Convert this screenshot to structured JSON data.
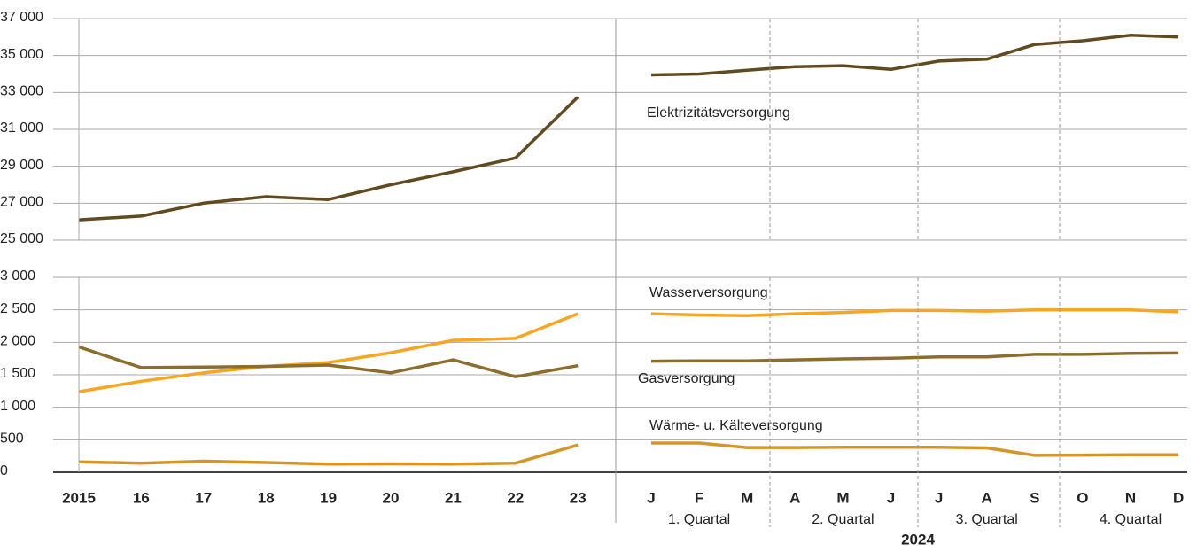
{
  "chart_data": {
    "type": "line",
    "categories": [
      "2015",
      "16",
      "17",
      "18",
      "19",
      "20",
      "21",
      "22",
      "23",
      null,
      "J",
      "F",
      "M",
      "A",
      "M",
      "J",
      "J",
      "A",
      "S",
      "O",
      "N",
      "D"
    ],
    "quarters": [
      "1. Quartal",
      "2. Quartal",
      "3. Quartal",
      "4. Quartal"
    ],
    "period_label": "2024",
    "grid": true,
    "panels": [
      {
        "ylim": [
          25000,
          37000
        ],
        "yticks": [
          {
            "value": 25000,
            "label": "25 000"
          },
          {
            "value": 27000,
            "label": "27 000"
          },
          {
            "value": 29000,
            "label": "29 000"
          },
          {
            "value": 31000,
            "label": "31 000"
          },
          {
            "value": 33000,
            "label": "33 000"
          },
          {
            "value": 35000,
            "label": "35 000"
          },
          {
            "value": 37000,
            "label": "37 000"
          }
        ],
        "series": [
          {
            "name": "Elektrizitätsversorgung",
            "color": "#614a1f",
            "values": [
              26100,
              26300,
              27000,
              27350,
              27200,
              28000,
              28700,
              29450,
              32750,
              null,
              33950,
              34000,
              34200,
              34400,
              34450,
              34250,
              34700,
              34800,
              35600,
              35800,
              36100,
              36000
            ]
          }
        ]
      },
      {
        "ylim": [
          0,
          3000
        ],
        "yticks": [
          0,
          500,
          {
            "value": 1000,
            "label": "1 000"
          },
          {
            "value": 1500,
            "label": "1 500"
          },
          {
            "value": 2000,
            "label": "2 000"
          },
          {
            "value": 2500,
            "label": "2 500"
          },
          {
            "value": 3000,
            "label": "3 000"
          }
        ],
        "series": [
          {
            "name": "Wasserversorgung",
            "color": "#f5a623",
            "values": [
              1240,
              1400,
              1530,
              1630,
              1690,
              1840,
              2030,
              2060,
              2440,
              null,
              2440,
              2420,
              2410,
              2440,
              2460,
              2490,
              2490,
              2480,
              2500,
              2500,
              2500,
              2470
            ]
          },
          {
            "name": "Gasversorgung",
            "color": "#8c6d2c",
            "values": [
              1930,
              1610,
              1620,
              1630,
              1650,
              1530,
              1730,
              1470,
              1640,
              null,
              1710,
              1715,
              1715,
              1730,
              1745,
              1755,
              1775,
              1775,
              1815,
              1815,
              1830,
              1835
            ]
          },
          {
            "name": "Wärme- u. Kälteversorgung",
            "color": "#d4952a",
            "values": [
              160,
              140,
              170,
              150,
              125,
              130,
              125,
              140,
              420,
              null,
              450,
              450,
              380,
              380,
              385,
              385,
              385,
              375,
              260,
              265,
              270,
              270
            ]
          }
        ]
      }
    ]
  }
}
